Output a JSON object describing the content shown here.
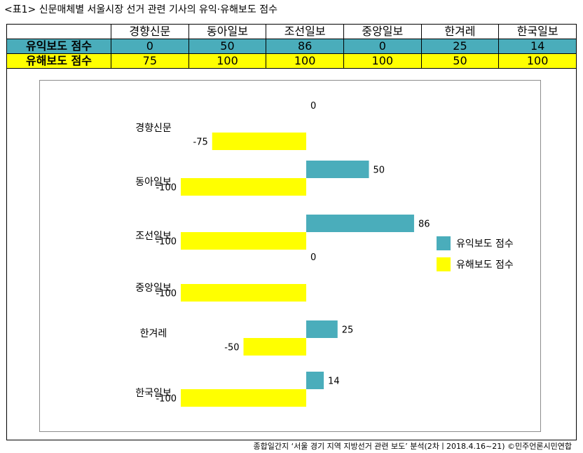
{
  "title": "<표1> 신문매체별 서울시장 선거 관련 기사의 유익·유해보도 점수",
  "colors": {
    "beneficial": "#4aadbb",
    "harmful": "#ffff00"
  },
  "table": {
    "columns": [
      "경향신문",
      "동아일보",
      "조선일보",
      "중앙일보",
      "한겨레",
      "한국일보"
    ],
    "rows": [
      {
        "label": "유익보도 점수",
        "values": [
          "0",
          "50",
          "86",
          "0",
          "25",
          "14"
        ]
      },
      {
        "label": "유해보도 점수",
        "values": [
          "75",
          "100",
          "100",
          "100",
          "50",
          "100"
        ]
      }
    ]
  },
  "chart_data": {
    "type": "bar",
    "orientation": "horizontal",
    "categories": [
      "경향신문",
      "동아일보",
      "조선일보",
      "중앙일보",
      "한겨레",
      "한국일보"
    ],
    "series": [
      {
        "name": "유익보도 점수",
        "values": [
          0,
          50,
          86,
          0,
          25,
          14
        ]
      },
      {
        "name": "유해보도 점수",
        "values": [
          -75,
          -100,
          -100,
          -100,
          -50,
          -100
        ]
      }
    ],
    "xlim": [
      -100,
      100
    ],
    "legend": "right"
  },
  "footer": "종합일간지 ‘서울 경기 지역 지방선거 관련 보도’ 분석(2차ㅣ2018.4.16~21) ©민주언론시민연합"
}
